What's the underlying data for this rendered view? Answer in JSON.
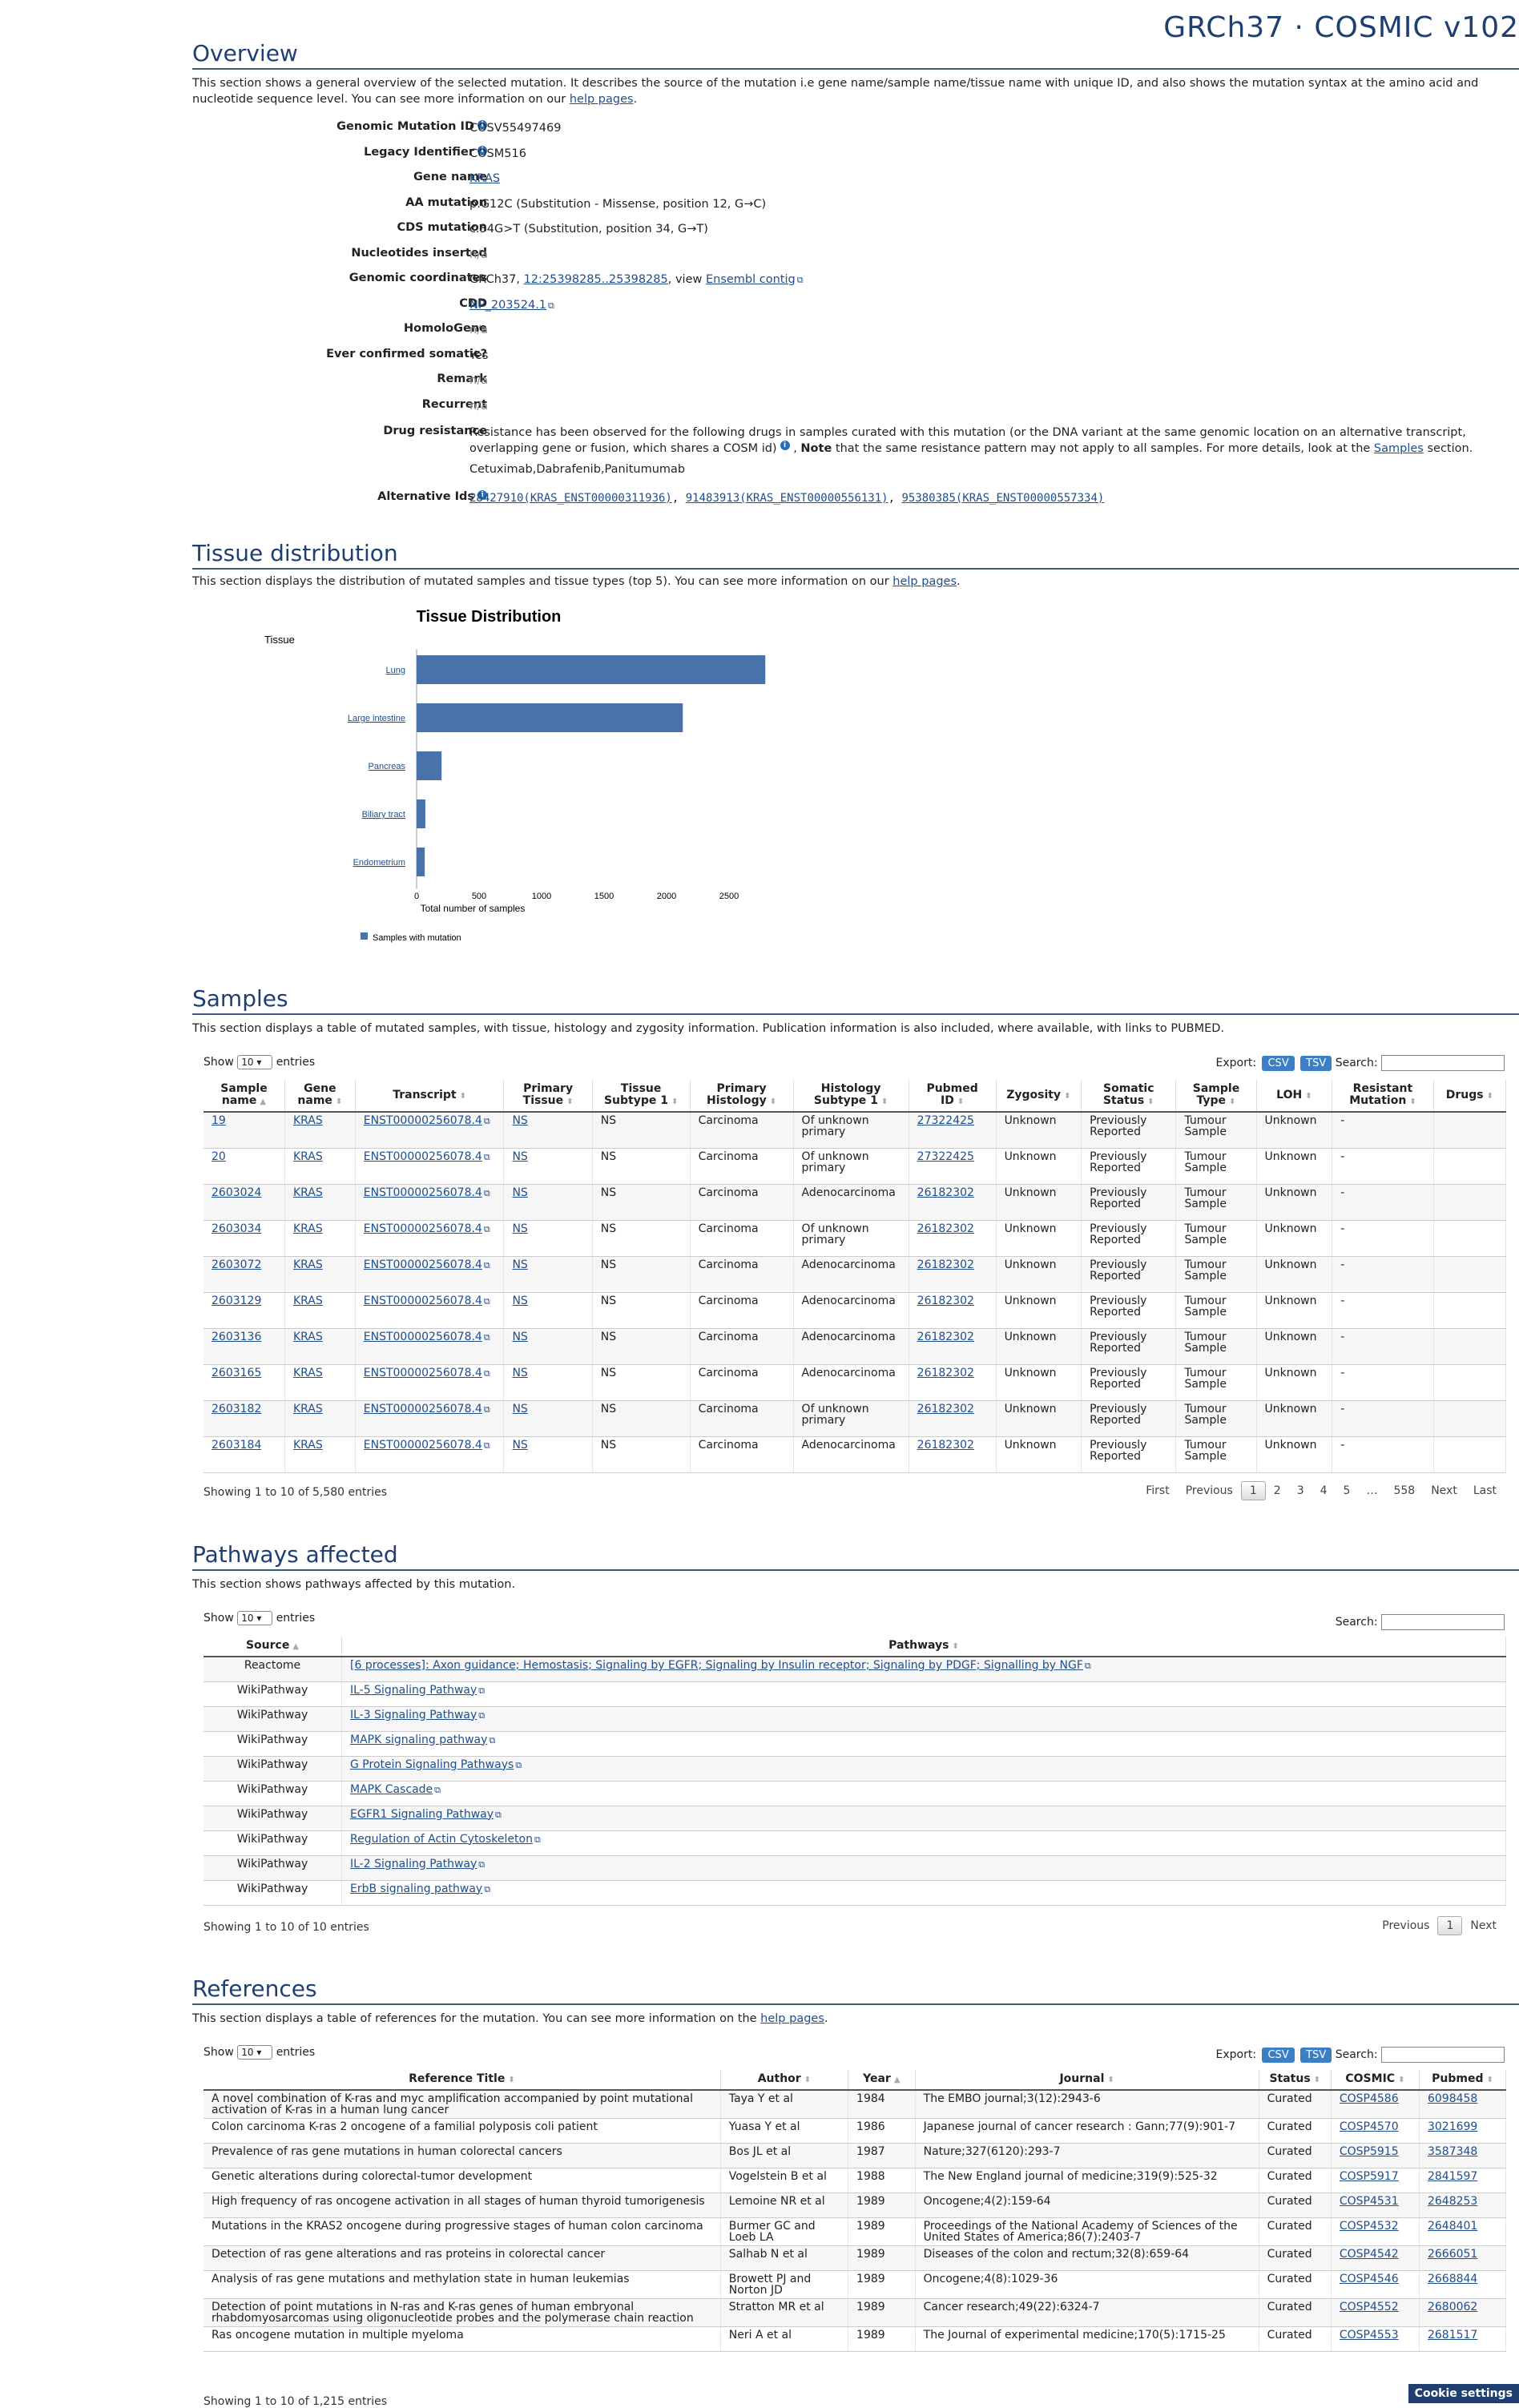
{
  "site": {
    "title": "GRCh37 · COSMIC v102"
  },
  "overview": {
    "title": "Overview",
    "intro": "This section shows a general overview of the selected mutation. It describes the source of the mutation i.e gene name/sample name/tissue name with unique ID, and also shows the mutation syntax at the amino acid and nucleotide sequence level. You can see more information on our",
    "help_link": "help pages",
    "rows": [
      {
        "label": "Genomic Mutation ID",
        "info": true,
        "value": "COSV55497469"
      },
      {
        "label": "Legacy Identifier",
        "info": true,
        "value": "COSM516"
      },
      {
        "label": "Gene name",
        "link": "KRAS"
      },
      {
        "label": "AA mutation",
        "value": "p.G12C (Substitution - Missense, position 12, G→C)"
      },
      {
        "label": "CDS mutation",
        "value": "c.34G>T (Substitution, position 34, G→T)"
      },
      {
        "label": "Nucleotides inserted",
        "na": "n/a"
      },
      {
        "label": "Genomic coordinates",
        "coords": {
          "prefix": "GRCh37,",
          "link": "12:25398285..25398285",
          "mid": ", view",
          "link2": "Ensembl contig"
        }
      },
      {
        "label": "CDD",
        "link": "NP_203524.1"
      },
      {
        "label": "HomoloGene",
        "na": "n/a"
      },
      {
        "label": "Ever confirmed somatic?",
        "value": "Yes"
      },
      {
        "label": "Remark",
        "na": "n/a"
      },
      {
        "label": "Recurrent",
        "na": "n/a"
      }
    ],
    "drug_resistance": {
      "label": "Drug resistance",
      "text1": "Resistance has been observed for the following drugs in samples curated with this mutation (or the DNA variant at the same genomic location on an alternative transcript, overlapping gene or fusion, which shares a COSM id)",
      "note_bold": "Note",
      "text2": "that the same resistance pattern may not apply to all samples. For more details, look at the",
      "samples_link": "Samples",
      "text3": "section.",
      "drugs": "Cetuximab,Dabrafenib,Panitumumab"
    },
    "alt_ids": {
      "label": "Alternative Ids",
      "items": [
        "28427910(KRAS_ENST00000311936)",
        "91483913(KRAS_ENST00000556131)",
        "95380385(KRAS_ENST00000557334)"
      ]
    }
  },
  "tissue": {
    "title": "Tissue distribution",
    "intro": "This section displays the distribution of mutated samples and tissue types (top 5). You can see more information on our",
    "help_link": "help pages"
  },
  "chart_data": {
    "type": "bar",
    "orientation": "horizontal",
    "title": "Tissue Distribution",
    "ylabel": "Tissue",
    "xlabel": "Total number of samples",
    "categories": [
      "Lung",
      "Large intestine",
      "Pancreas",
      "Biliary tract",
      "Endometrium"
    ],
    "series": [
      {
        "name": "Samples with mutation",
        "values": [
          2790,
          2130,
          200,
          70,
          65
        ]
      }
    ],
    "xlim": [
      0,
      3000
    ],
    "xticks": [
      0,
      500,
      1000,
      1500,
      2000,
      2500,
      3000
    ],
    "color": "#4a72aa",
    "legend": "bottom-left"
  },
  "samples": {
    "title": "Samples",
    "intro": "This section displays a table of mutated samples, with tissue, histology and zygosity information. Publication information is also included, where available, with links to PUBMED.",
    "show": "Show",
    "entries_label": "entries",
    "page_size": "10",
    "export": "Export:",
    "csv": "CSV",
    "tsv": "TSV",
    "search": "Search:",
    "headers": [
      "Sample name",
      "Gene name",
      "Transcript",
      "Primary Tissue",
      "Tissue Subtype 1",
      "Primary Histology",
      "Histology Subtype 1",
      "Pubmed ID",
      "Zygosity",
      "Somatic Status",
      "Sample Type",
      "LOH",
      "Resistant Mutation",
      "Drugs"
    ],
    "rows": [
      [
        "19",
        "KRAS",
        "ENST00000256078.4",
        "NS",
        "NS",
        "Carcinoma",
        "Of unknown primary",
        "27322425",
        "Unknown",
        "Previously Reported",
        "Tumour Sample",
        "Unknown",
        "-",
        ""
      ],
      [
        "20",
        "KRAS",
        "ENST00000256078.4",
        "NS",
        "NS",
        "Carcinoma",
        "Of unknown primary",
        "27322425",
        "Unknown",
        "Previously Reported",
        "Tumour Sample",
        "Unknown",
        "-",
        ""
      ],
      [
        "2603024",
        "KRAS",
        "ENST00000256078.4",
        "NS",
        "NS",
        "Carcinoma",
        "Adenocarcinoma",
        "26182302",
        "Unknown",
        "Previously Reported",
        "Tumour Sample",
        "Unknown",
        "-",
        ""
      ],
      [
        "2603034",
        "KRAS",
        "ENST00000256078.4",
        "NS",
        "NS",
        "Carcinoma",
        "Of unknown primary",
        "26182302",
        "Unknown",
        "Previously Reported",
        "Tumour Sample",
        "Unknown",
        "-",
        ""
      ],
      [
        "2603072",
        "KRAS",
        "ENST00000256078.4",
        "NS",
        "NS",
        "Carcinoma",
        "Adenocarcinoma",
        "26182302",
        "Unknown",
        "Previously Reported",
        "Tumour Sample",
        "Unknown",
        "-",
        ""
      ],
      [
        "2603129",
        "KRAS",
        "ENST00000256078.4",
        "NS",
        "NS",
        "Carcinoma",
        "Adenocarcinoma",
        "26182302",
        "Unknown",
        "Previously Reported",
        "Tumour Sample",
        "Unknown",
        "-",
        ""
      ],
      [
        "2603136",
        "KRAS",
        "ENST00000256078.4",
        "NS",
        "NS",
        "Carcinoma",
        "Adenocarcinoma",
        "26182302",
        "Unknown",
        "Previously Reported",
        "Tumour Sample",
        "Unknown",
        "-",
        ""
      ],
      [
        "2603165",
        "KRAS",
        "ENST00000256078.4",
        "NS",
        "NS",
        "Carcinoma",
        "Adenocarcinoma",
        "26182302",
        "Unknown",
        "Previously Reported",
        "Tumour Sample",
        "Unknown",
        "-",
        ""
      ],
      [
        "2603182",
        "KRAS",
        "ENST00000256078.4",
        "NS",
        "NS",
        "Carcinoma",
        "Of unknown primary",
        "26182302",
        "Unknown",
        "Previously Reported",
        "Tumour Sample",
        "Unknown",
        "-",
        ""
      ],
      [
        "2603184",
        "KRAS",
        "ENST00000256078.4",
        "NS",
        "NS",
        "Carcinoma",
        "Adenocarcinoma",
        "26182302",
        "Unknown",
        "Previously Reported",
        "Tumour Sample",
        "Unknown",
        "-",
        ""
      ]
    ],
    "info": "Showing 1 to 10 of 5,580 entries",
    "pager": [
      "First",
      "Previous",
      "1",
      "2",
      "3",
      "4",
      "5",
      "…",
      "558",
      "Next",
      "Last"
    ]
  },
  "pathways": {
    "title": "Pathways affected",
    "intro": "This section shows pathways affected by this mutation.",
    "show": "Show",
    "entries_label": "entries",
    "page_size": "10",
    "search": "Search:",
    "headers": [
      "Source",
      "Pathways"
    ],
    "rows": [
      [
        "Reactome",
        "[6 processes]: Axon guidance; Hemostasis; Signaling by EGFR; Signaling by Insulin receptor; Signaling by PDGF; Signalling by NGF"
      ],
      [
        "WikiPathway",
        "IL-5 Signaling Pathway"
      ],
      [
        "WikiPathway",
        "IL-3 Signaling Pathway"
      ],
      [
        "WikiPathway",
        "MAPK signaling pathway"
      ],
      [
        "WikiPathway",
        "G Protein Signaling Pathways"
      ],
      [
        "WikiPathway",
        "MAPK Cascade"
      ],
      [
        "WikiPathway",
        "EGFR1 Signaling Pathway"
      ],
      [
        "WikiPathway",
        "Regulation of Actin Cytoskeleton"
      ],
      [
        "WikiPathway",
        "IL-2 Signaling Pathway"
      ],
      [
        "WikiPathway",
        "ErbB signaling pathway"
      ]
    ],
    "info": "Showing 1 to 10 of 10 entries",
    "pager": [
      "Previous",
      "1",
      "Next"
    ]
  },
  "references": {
    "title": "References",
    "intro": "This section displays a table of references for the mutation. You can see more information on the",
    "help_link": "help pages",
    "show": "Show",
    "entries_label": "entries",
    "page_size": "10",
    "export": "Export:",
    "csv": "CSV",
    "tsv": "TSV",
    "search": "Search:",
    "headers": [
      "Reference Title",
      "Author",
      "Year",
      "Journal",
      "Status",
      "COSMIC",
      "Pubmed"
    ],
    "rows": [
      [
        "A novel combination of K-ras and myc amplification accompanied by point mutational activation of K-ras in a human lung cancer",
        "Taya Y et al",
        "1984",
        "The EMBO journal;3(12):2943-6",
        "Curated",
        "COSP4586",
        "6098458"
      ],
      [
        "Colon carcinoma K-ras 2 oncogene of a familial polyposis coli patient",
        "Yuasa Y et al",
        "1986",
        "Japanese journal of cancer research : Gann;77(9):901-7",
        "Curated",
        "COSP4570",
        "3021699"
      ],
      [
        "Prevalence of ras gene mutations in human colorectal cancers",
        "Bos JL et al",
        "1987",
        "Nature;327(6120):293-7",
        "Curated",
        "COSP5915",
        "3587348"
      ],
      [
        "Genetic alterations during colorectal-tumor development",
        "Vogelstein B et al",
        "1988",
        "The New England journal of medicine;319(9):525-32",
        "Curated",
        "COSP5917",
        "2841597"
      ],
      [
        "High frequency of ras oncogene activation in all stages of human thyroid tumorigenesis",
        "Lemoine NR et al",
        "1989",
        "Oncogene;4(2):159-64",
        "Curated",
        "COSP4531",
        "2648253"
      ],
      [
        "Mutations in the KRAS2 oncogene during progressive stages of human colon carcinoma",
        "Burmer GC and Loeb LA",
        "1989",
        "Proceedings of the National Academy of Sciences of the United States of America;86(7):2403-7",
        "Curated",
        "COSP4532",
        "2648401"
      ],
      [
        "Detection of ras gene alterations and ras proteins in colorectal cancer",
        "Salhab N et al",
        "1989",
        "Diseases of the colon and rectum;32(8):659-64",
        "Curated",
        "COSP4542",
        "2666051"
      ],
      [
        "Analysis of ras gene mutations and methylation state in human leukemias",
        "Browett PJ and Norton JD",
        "1989",
        "Oncogene;4(8):1029-36",
        "Curated",
        "COSP4546",
        "2668844"
      ],
      [
        "Detection of point mutations in N-ras and K-ras genes of human embryonal rhabdomyosarcomas using oligonucleotide probes and the polymerase chain reaction",
        "Stratton MR et al",
        "1989",
        "Cancer research;49(22):6324-7",
        "Curated",
        "COSP4552",
        "2680062"
      ],
      [
        "Ras oncogene mutation in multiple myeloma",
        "Neri A et al",
        "1989",
        "The Journal of experimental medicine;170(5):1715-25",
        "Curated",
        "COSP4553",
        "2681517"
      ]
    ],
    "info": "Showing 1 to 10 of 1,215 entries"
  },
  "cookie": "Cookie settings"
}
